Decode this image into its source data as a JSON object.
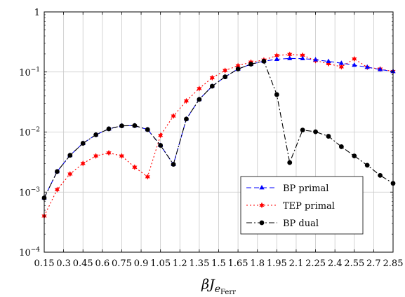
{
  "chart_data": {
    "type": "line",
    "xlabel_main": "βJ",
    "xlabel_sub": "e",
    "xlabel_subsub": "Ferr",
    "ylabel": "",
    "xlim": [
      0.15,
      2.85
    ],
    "ylim": [
      0.0001,
      1
    ],
    "y_scale": "log",
    "x_ticks": [
      "0.15",
      "0.3",
      "0.45",
      "0.6",
      "0.75",
      "0.9",
      "1.05",
      "1.2",
      "1.35",
      "1.5",
      "1.65",
      "1.8",
      "1.95",
      "2.1",
      "2.25",
      "2.4",
      "2.55",
      "2.7",
      "2.85"
    ],
    "x_tick_values": [
      0.15,
      0.3,
      0.45,
      0.6,
      0.75,
      0.9,
      1.05,
      1.2,
      1.35,
      1.5,
      1.65,
      1.8,
      1.95,
      2.1,
      2.25,
      2.4,
      2.55,
      2.7,
      2.85
    ],
    "y_ticks": [
      {
        "value": 0.0001,
        "base": "10",
        "exp": "−4"
      },
      {
        "value": 0.001,
        "base": "10",
        "exp": "−3"
      },
      {
        "value": 0.01,
        "base": "10",
        "exp": "−2"
      },
      {
        "value": 0.1,
        "base": "10",
        "exp": "−1"
      },
      {
        "value": 1,
        "base": "1",
        "exp": ""
      }
    ],
    "grid": true,
    "legend_position": "bottom-right",
    "series": [
      {
        "name": "BP primal",
        "color": "#0000ff",
        "dash": "7,4",
        "marker": "triangle",
        "x": [
          0.15,
          0.25,
          0.35,
          0.45,
          0.55,
          0.65,
          0.75,
          0.85,
          0.95,
          1.05,
          1.15,
          1.25,
          1.35,
          1.45,
          1.55,
          1.65,
          1.75,
          1.85,
          1.95,
          2.05,
          2.15,
          2.25,
          2.35,
          2.45,
          2.55,
          2.65,
          2.75,
          2.85
        ],
        "y": [
          0.0008,
          0.0022,
          0.0041,
          0.0065,
          0.009,
          0.0113,
          0.0127,
          0.0128,
          0.011,
          0.006,
          0.0029,
          0.0165,
          0.035,
          0.058,
          0.083,
          0.112,
          0.135,
          0.151,
          0.163,
          0.168,
          0.167,
          0.16,
          0.15,
          0.14,
          0.13,
          0.12,
          0.11,
          0.102
        ]
      },
      {
        "name": "TEP primal",
        "color": "#ff0000",
        "dash": "2,3",
        "marker": "star",
        "x": [
          0.15,
          0.25,
          0.35,
          0.45,
          0.55,
          0.65,
          0.75,
          0.85,
          0.95,
          1.05,
          1.15,
          1.25,
          1.35,
          1.45,
          1.55,
          1.65,
          1.75,
          1.85,
          1.95,
          2.05,
          2.15,
          2.25,
          2.35,
          2.45,
          2.55,
          2.65,
          2.75,
          2.85
        ],
        "y": [
          0.0004,
          0.0011,
          0.002,
          0.003,
          0.004,
          0.0045,
          0.004,
          0.0026,
          0.0018,
          0.0088,
          0.0185,
          0.033,
          0.053,
          0.08,
          0.106,
          0.127,
          0.146,
          0.158,
          0.188,
          0.196,
          0.19,
          0.155,
          0.137,
          0.122,
          0.165,
          0.12,
          0.112,
          0.102
        ]
      },
      {
        "name": "BP dual",
        "color": "#000000",
        "dash": "8,3,2,3",
        "marker": "circle",
        "x": [
          0.15,
          0.25,
          0.35,
          0.45,
          0.55,
          0.65,
          0.75,
          0.85,
          0.95,
          1.05,
          1.15,
          1.25,
          1.35,
          1.45,
          1.55,
          1.65,
          1.75,
          1.85,
          1.95,
          2.05,
          2.15,
          2.25,
          2.35,
          2.45,
          2.55,
          2.65,
          2.75,
          2.85
        ],
        "y": [
          0.0008,
          0.0022,
          0.0041,
          0.0065,
          0.009,
          0.0113,
          0.0127,
          0.0128,
          0.011,
          0.006,
          0.0029,
          0.0165,
          0.035,
          0.058,
          0.083,
          0.112,
          0.135,
          0.151,
          0.042,
          0.0031,
          0.0108,
          0.0101,
          0.0085,
          0.0057,
          0.004,
          0.0028,
          0.0019,
          0.0014
        ]
      }
    ]
  }
}
